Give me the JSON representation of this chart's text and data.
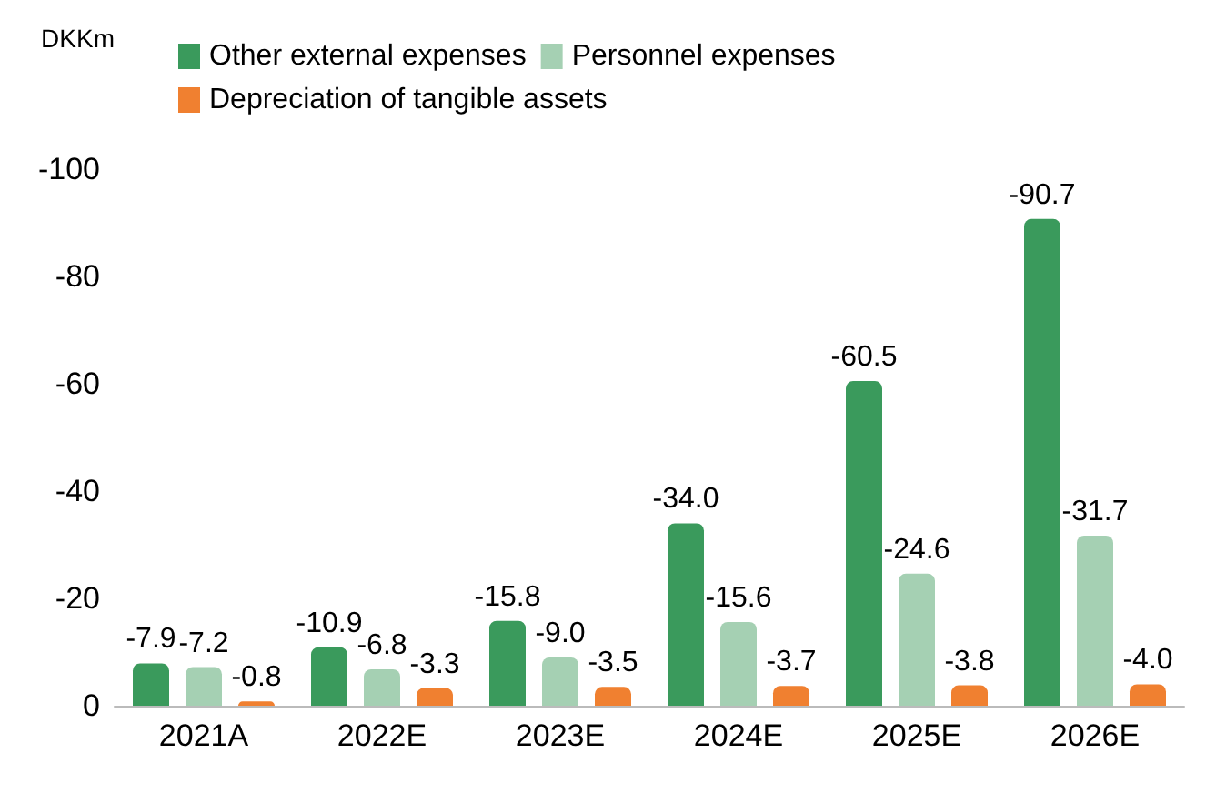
{
  "chart_data": {
    "type": "bar",
    "ylabel": "DKKm",
    "categories": [
      "2021A",
      "2022E",
      "2023E",
      "2024E",
      "2025E",
      "2026E"
    ],
    "series": [
      {
        "name": "Other external expenses",
        "color": "#3a9a5c",
        "values": [
          -7.9,
          -10.9,
          -15.8,
          -34.0,
          -60.5,
          -90.7
        ],
        "value_labels": [
          "-7.9",
          "-10.9",
          "-15.8",
          "-34.0",
          "-60.5",
          "-90.7"
        ]
      },
      {
        "name": "Personnel expenses",
        "color": "#a5d0b3",
        "values": [
          -7.2,
          -6.8,
          -9.0,
          -15.6,
          -24.6,
          -31.7
        ],
        "value_labels": [
          "-7.2",
          "-6.8",
          "-9.0",
          "-15.6",
          "-24.6",
          "-31.7"
        ]
      },
      {
        "name": "Depreciation of tangible assets",
        "color": "#f08030",
        "values": [
          -0.8,
          -3.3,
          -3.5,
          -3.7,
          -3.8,
          -4.0
        ],
        "value_labels": [
          "-0.8",
          "-3.3",
          "-3.5",
          "-3.7",
          "-3.8",
          "-4.0"
        ]
      }
    ],
    "ylim": [
      0,
      -100
    ],
    "yticks": [
      0,
      -20,
      -40,
      -60,
      -80,
      -100
    ],
    "grid": false,
    "legend": "top"
  }
}
